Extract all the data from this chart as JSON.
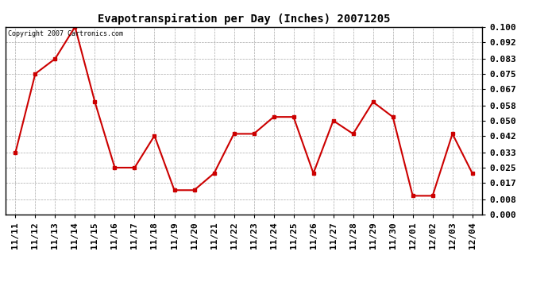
{
  "title": "Evapotranspiration per Day (Inches) 20071205",
  "copyright_text": "Copyright 2007 Cartronics.com",
  "x_labels": [
    "11/11",
    "11/12",
    "11/13",
    "11/14",
    "11/15",
    "11/16",
    "11/17",
    "11/18",
    "11/19",
    "11/20",
    "11/21",
    "11/22",
    "11/23",
    "11/24",
    "11/25",
    "11/26",
    "11/27",
    "11/28",
    "11/29",
    "11/30",
    "12/01",
    "12/02",
    "12/03",
    "12/04"
  ],
  "y_values": [
    0.033,
    0.075,
    0.083,
    0.1,
    0.06,
    0.025,
    0.025,
    0.042,
    0.013,
    0.013,
    0.022,
    0.043,
    0.043,
    0.052,
    0.052,
    0.022,
    0.05,
    0.043,
    0.06,
    0.052,
    0.01,
    0.01,
    0.043,
    0.022
  ],
  "line_color": "#cc0000",
  "marker": "s",
  "marker_size": 3,
  "background_color": "#ffffff",
  "grid_color": "#aaaaaa",
  "ylim": [
    0.0,
    0.1
  ],
  "yticks": [
    0.0,
    0.008,
    0.017,
    0.025,
    0.033,
    0.042,
    0.05,
    0.058,
    0.067,
    0.075,
    0.083,
    0.092,
    0.1
  ],
  "title_fontsize": 10,
  "tick_fontsize": 8,
  "copyright_fontsize": 6
}
